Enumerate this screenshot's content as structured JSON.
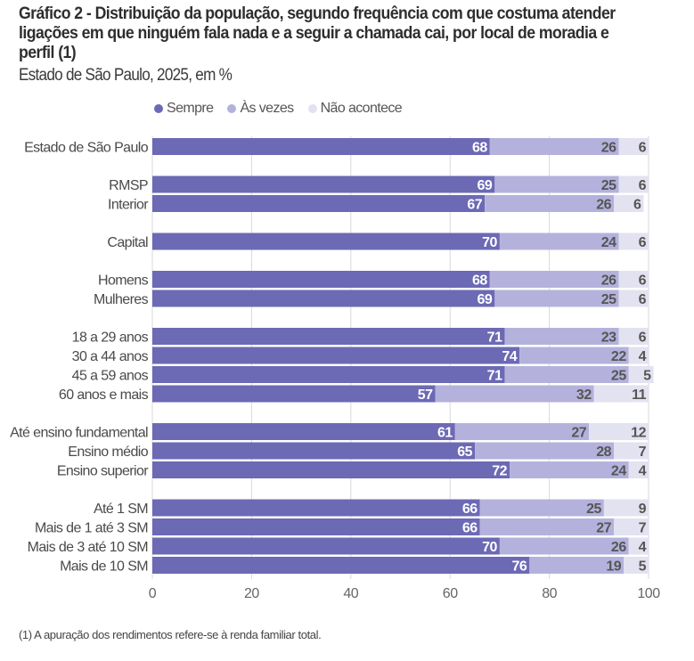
{
  "header": {
    "title": "Gráfico 2 - Distribuição da população, segundo frequência com que costuma atender ligações em que ninguém fala nada e a seguir a chamada cai, por local de moradia e perfil (1)",
    "subtitle": "Estado de São Paulo, 2025, em %"
  },
  "footnote": "(1) A apuração dos rendimentos refere-se à renda familiar total.",
  "colors": {
    "sempre": "#6c69b5",
    "as_vezes": "#b4b2dc",
    "nao_acontece": "#e3e2f1",
    "gridline": "#d9d9d9"
  },
  "chart_data": {
    "type": "bar",
    "orientation": "horizontal",
    "stacked": true,
    "title": "Gráfico 2 - Distribuição da população, segundo frequência com que costuma atender ligações em que ninguém fala nada e a seguir a chamada cai, por local de moradia e perfil (1)",
    "subtitle": "Estado de São Paulo, 2025, em %",
    "xlabel": "",
    "ylabel": "",
    "xlim": [
      0,
      100
    ],
    "xticks": [
      0,
      20,
      40,
      60,
      80,
      100
    ],
    "grid": true,
    "legend_position": "top",
    "groups": [
      [
        "Estado de São Paulo"
      ],
      [
        "RMSP",
        "Interior"
      ],
      [
        "Capital"
      ],
      [
        "Homens",
        "Mulheres"
      ],
      [
        "18 a 29 anos",
        "30 a 44 anos",
        "45 a 59 anos",
        "60 anos e mais"
      ],
      [
        "Até ensino fundamental",
        "Ensino médio",
        "Ensino superior"
      ],
      [
        "Até 1 SM",
        "Mais de 1 até 3 SM",
        "Mais de 3 até 10 SM",
        "Mais de 10 SM"
      ]
    ],
    "categories": [
      "Estado de São Paulo",
      "RMSP",
      "Interior",
      "Capital",
      "Homens",
      "Mulheres",
      "18 a 29 anos",
      "30 a 44 anos",
      "45 a 59 anos",
      "60 anos e mais",
      "Até ensino fundamental",
      "Ensino médio",
      "Ensino superior",
      "Até 1 SM",
      "Mais de 1 até 3 SM",
      "Mais de 3 até 10 SM",
      "Mais de 10 SM"
    ],
    "series": [
      {
        "name": "Sempre",
        "values": [
          68,
          69,
          67,
          70,
          68,
          69,
          71,
          74,
          71,
          57,
          61,
          65,
          72,
          66,
          66,
          70,
          76
        ]
      },
      {
        "name": "Às vezes",
        "values": [
          26,
          25,
          26,
          24,
          26,
          25,
          23,
          22,
          25,
          32,
          27,
          28,
          24,
          25,
          27,
          26,
          19
        ]
      },
      {
        "name": "Não acontece",
        "values": [
          6,
          6,
          6,
          6,
          6,
          6,
          6,
          4,
          5,
          11,
          12,
          7,
          4,
          9,
          7,
          4,
          5
        ]
      }
    ]
  }
}
